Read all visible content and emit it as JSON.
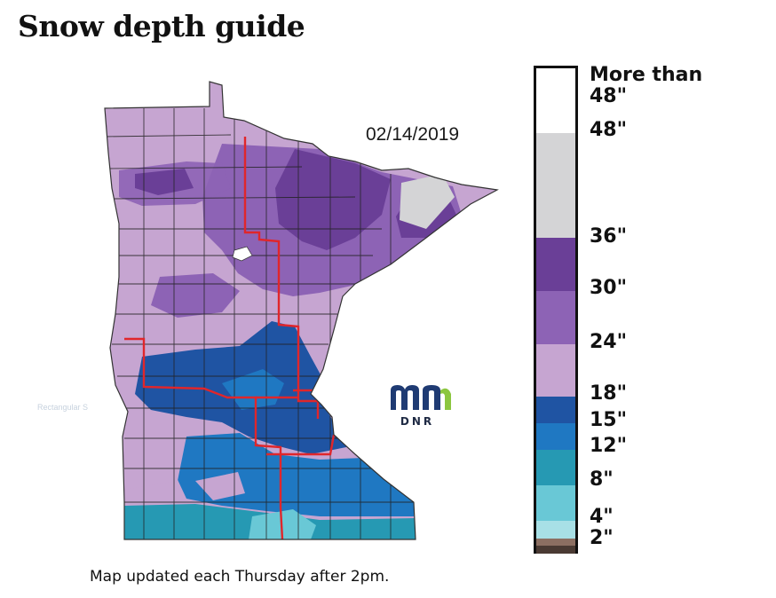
{
  "page": {
    "title": "Snow depth guide",
    "caption": "Map updated each Thursday after 2pm."
  },
  "map": {
    "date": "02/14/2019",
    "logo_text": "DNR",
    "ghost_label": "Rectangular S"
  },
  "legend": {
    "bands": [
      {
        "range": "More than 48\"",
        "color": "#ffffff"
      },
      {
        "range": "36\"-48\"",
        "color": "#d4d4d6"
      },
      {
        "range": "30\"-36\"",
        "color": "#6a3f97"
      },
      {
        "range": "24\"-30\"",
        "color": "#8d63b5"
      },
      {
        "range": "18\"-24\"",
        "color": "#c6a5d1"
      },
      {
        "range": "15\"-18\"",
        "color": "#1f54a3"
      },
      {
        "range": "12\"-15\"",
        "color": "#1f78c2"
      },
      {
        "range": "8\"-12\"",
        "color": "#2699b3"
      },
      {
        "range": "4\"-8\"",
        "color": "#69c8d6"
      },
      {
        "range": "2\"-4\"",
        "color": "#a8e0e6"
      },
      {
        "range": "trace-2\"",
        "color": "#8c6f62"
      },
      {
        "range": "0\"",
        "color": "#4a3a33"
      }
    ],
    "labels": {
      "more_than": "More than",
      "l48a": "48\"",
      "l48b": "48\"",
      "l36": "36\"",
      "l30": "30\"",
      "l24": "24\"",
      "l18": "18\"",
      "l15": "15\"",
      "l12": "12\"",
      "l8": "8\"",
      "l4": "4\"",
      "l2": "2\""
    }
  },
  "colors": {
    "region_boundary": "#e0262b",
    "county_line": "#222222",
    "logo_blue": "#1f3b73",
    "logo_green": "#8cc640"
  }
}
